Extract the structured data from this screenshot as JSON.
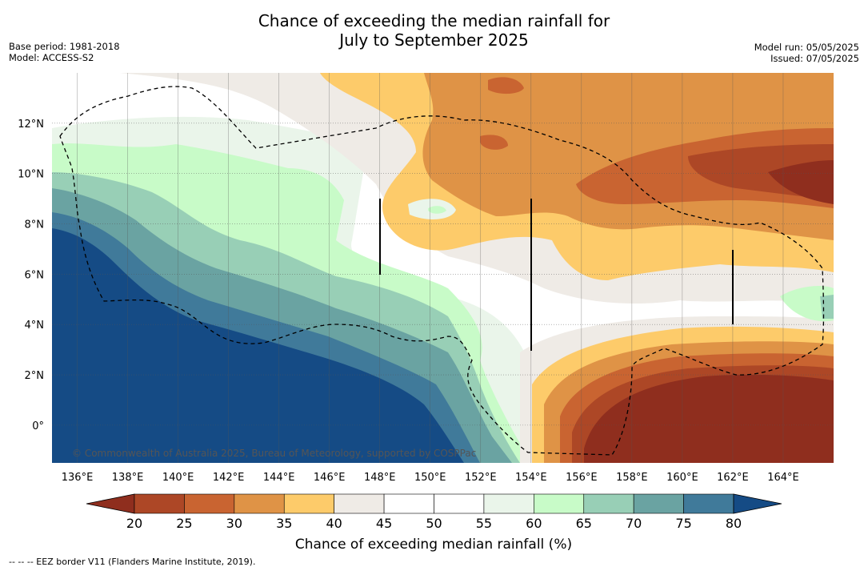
{
  "title_line1": "Chance of exceeding the median rainfall for",
  "title_line2": "July to September 2025",
  "base_period": "Base period: 1981-2018",
  "model": "Model: ACCESS-S2",
  "model_run": "Model run: 05/05/2025",
  "issued": "Issued: 07/05/2025",
  "copyright": "© Commonwealth of Australia 2025, Bureau of Meteorology, supported by COSPPac",
  "footnote": "-- -- -- EEZ border V11 (Flanders Marine Institute, 2019).",
  "axes": {
    "lon_min": 135,
    "lon_max": 166,
    "lat_min": -1.5,
    "lat_max": 14,
    "lon_ticks": [
      "136°E",
      "138°E",
      "140°E",
      "142°E",
      "144°E",
      "146°E",
      "148°E",
      "150°E",
      "152°E",
      "154°E",
      "156°E",
      "158°E",
      "160°E",
      "162°E",
      "164°E"
    ],
    "lon_values": [
      136,
      138,
      140,
      142,
      144,
      146,
      148,
      150,
      152,
      154,
      156,
      158,
      160,
      162,
      164
    ],
    "lat_ticks": [
      "0°",
      "2°N",
      "4°N",
      "6°N",
      "8°N",
      "10°N",
      "12°N"
    ],
    "lat_values": [
      0,
      2,
      4,
      6,
      8,
      10,
      12
    ]
  },
  "colorbar": {
    "title": "Chance of exceeding median rainfall (%)",
    "tick_labels": [
      "20",
      "25",
      "30",
      "35",
      "40",
      "45",
      "50",
      "55",
      "60",
      "65",
      "70",
      "75",
      "80"
    ],
    "colors": [
      "#8f2e1e",
      "#ad4726",
      "#c96431",
      "#df9346",
      "#fdcb6a",
      "#efebe6",
      "#ffffff",
      "#ffffff",
      "#eaf5ea",
      "#c8fbc8",
      "#98cfb6",
      "#6aa3a2",
      "#407a9a",
      "#154b85"
    ]
  },
  "colors": {
    "c20": "#8f2e1e",
    "c25": "#ad4726",
    "c30": "#c96431",
    "c35": "#df9346",
    "c40": "#fdcb6a",
    "c45": "#efebe6",
    "c55": "#eaf5ea",
    "c60": "#c8fbc8",
    "c65": "#98cfb6",
    "c70": "#6aa3a2",
    "c75": "#407a9a",
    "c80": "#154b85"
  }
}
